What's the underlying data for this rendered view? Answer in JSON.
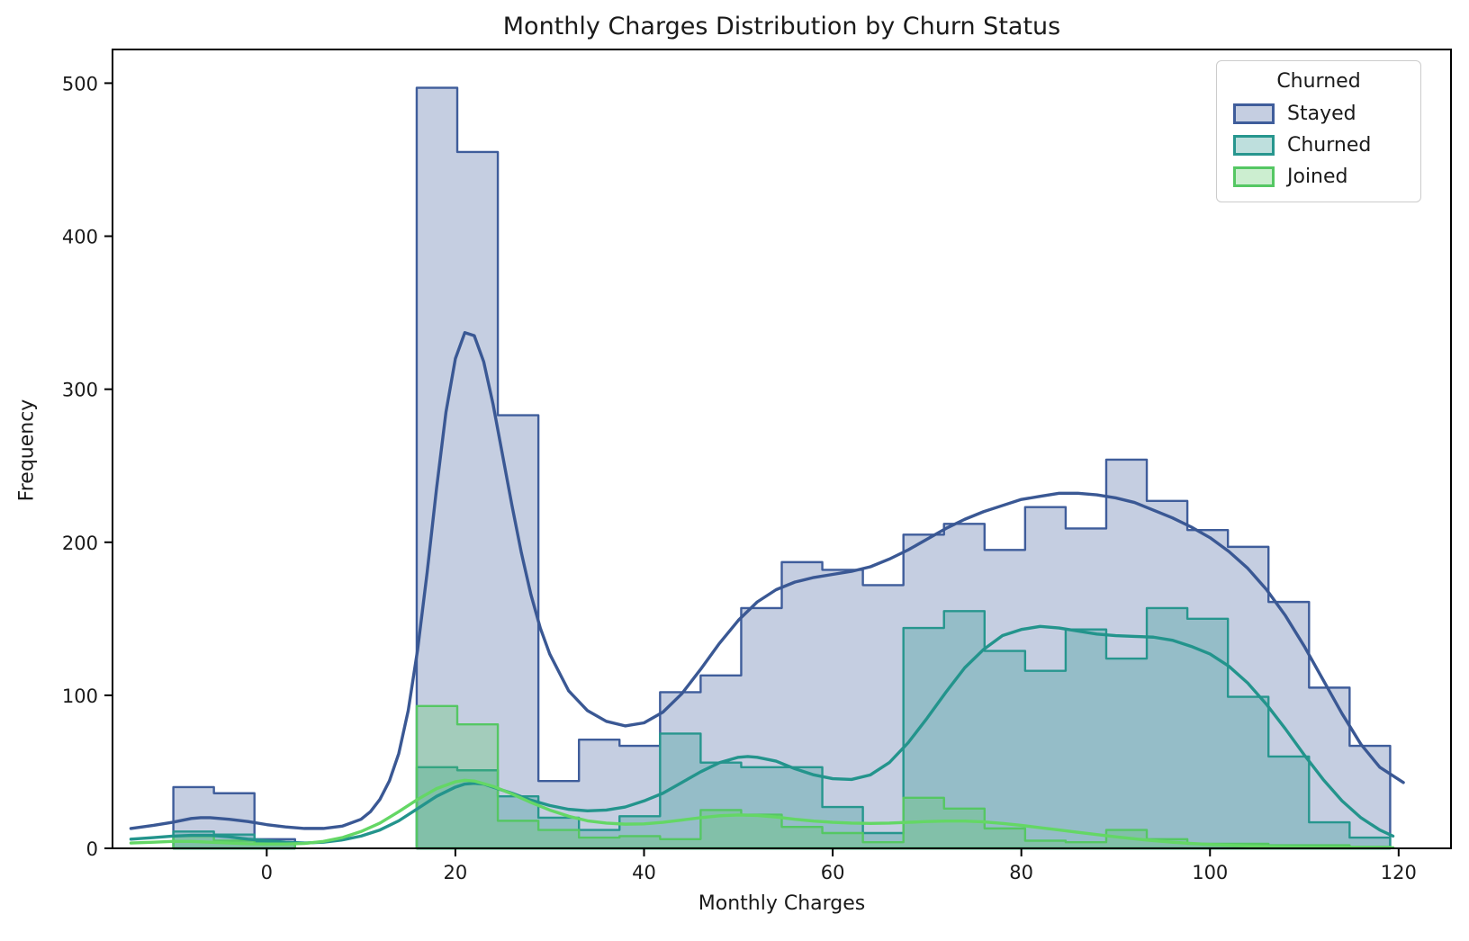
{
  "figure": {
    "title": "Monthly Charges Distribution by Churn Status",
    "xlabel": "Monthly Charges",
    "ylabel": "Frequency"
  },
  "legend": {
    "title": "Churned",
    "entries": [
      {
        "label": "Stayed",
        "color": "#3F5D9B"
      },
      {
        "label": "Churned",
        "color": "#27968E"
      },
      {
        "label": "Joined",
        "color": "#55C763"
      }
    ]
  },
  "chart_data": {
    "type": "histogram+kde",
    "title": "Monthly Charges Distribution by Churn Status",
    "xlabel": "Monthly Charges",
    "ylabel": "Frequency",
    "legend_title": "Churned",
    "legend_position": "upper right",
    "grid": false,
    "xlim": [
      -16.35,
      125.55
    ],
    "ylim": [
      0,
      522
    ],
    "x_ticks": [
      0,
      20,
      40,
      60,
      80,
      100,
      120
    ],
    "y_ticks": [
      0,
      100,
      200,
      300,
      400,
      500
    ],
    "bin_start": -9.9,
    "bin_width": 4.3,
    "n_bins": 30,
    "series": [
      {
        "name": "Stayed",
        "color": "#3F5D9B",
        "heights": [
          40,
          36,
          6,
          0,
          0,
          0,
          497,
          455,
          283,
          44,
          71,
          67,
          102,
          113,
          157,
          187,
          182,
          172,
          205,
          212,
          195,
          223,
          209,
          254,
          227,
          208,
          197,
          161,
          105,
          67
        ]
      },
      {
        "name": "Churned",
        "color": "#27968E",
        "heights": [
          11,
          9,
          4,
          0,
          0,
          0,
          53,
          51,
          34,
          20,
          12,
          21,
          75,
          56,
          53,
          53,
          27,
          10,
          144,
          155,
          129,
          116,
          143,
          124,
          157,
          150,
          99,
          60,
          17,
          7
        ]
      },
      {
        "name": "Joined",
        "color": "#55C763",
        "heights": [
          8,
          5,
          3,
          0,
          0,
          0,
          93,
          81,
          18,
          12,
          7,
          8,
          6,
          25,
          22,
          14,
          10,
          4,
          33,
          26,
          13,
          5,
          4,
          12,
          6,
          3,
          3,
          2,
          2,
          1
        ]
      }
    ],
    "kde": [
      {
        "name": "Stayed",
        "color": "#3A5894",
        "points": [
          [
            -14.4,
            13
          ],
          [
            -12,
            15
          ],
          [
            -10,
            17
          ],
          [
            -8,
            19.5
          ],
          [
            -7,
            20
          ],
          [
            -6,
            20
          ],
          [
            -4,
            19
          ],
          [
            -2,
            17.5
          ],
          [
            0,
            15.5
          ],
          [
            2,
            14
          ],
          [
            4,
            13
          ],
          [
            6,
            13
          ],
          [
            8,
            14.5
          ],
          [
            10,
            19
          ],
          [
            11,
            24
          ],
          [
            12,
            32
          ],
          [
            13,
            44
          ],
          [
            14,
            62
          ],
          [
            15,
            90
          ],
          [
            16,
            130
          ],
          [
            17,
            180
          ],
          [
            18,
            235
          ],
          [
            19,
            285
          ],
          [
            20,
            320
          ],
          [
            21,
            337
          ],
          [
            22,
            335
          ],
          [
            23,
            318
          ],
          [
            24,
            290
          ],
          [
            25,
            257
          ],
          [
            26,
            224
          ],
          [
            27,
            193
          ],
          [
            28,
            166
          ],
          [
            29,
            144
          ],
          [
            30,
            127
          ],
          [
            32,
            103
          ],
          [
            34,
            90
          ],
          [
            36,
            83
          ],
          [
            38,
            80
          ],
          [
            40,
            82
          ],
          [
            42,
            89
          ],
          [
            44,
            101
          ],
          [
            46,
            117
          ],
          [
            48,
            134
          ],
          [
            50,
            149
          ],
          [
            52,
            161
          ],
          [
            54,
            169
          ],
          [
            56,
            174
          ],
          [
            58,
            177
          ],
          [
            60,
            179
          ],
          [
            62,
            181
          ],
          [
            64,
            184
          ],
          [
            66,
            189
          ],
          [
            68,
            195
          ],
          [
            70,
            202
          ],
          [
            72,
            209
          ],
          [
            74,
            215
          ],
          [
            76,
            220
          ],
          [
            78,
            224
          ],
          [
            80,
            228
          ],
          [
            82,
            230
          ],
          [
            84,
            232
          ],
          [
            86,
            232
          ],
          [
            88,
            231
          ],
          [
            90,
            229
          ],
          [
            92,
            226
          ],
          [
            94,
            221
          ],
          [
            96,
            216
          ],
          [
            98,
            210
          ],
          [
            100,
            203
          ],
          [
            102,
            194
          ],
          [
            104,
            183
          ],
          [
            106,
            169
          ],
          [
            108,
            152
          ],
          [
            110,
            132
          ],
          [
            112,
            110
          ],
          [
            114,
            88
          ],
          [
            116,
            68
          ],
          [
            118,
            53
          ],
          [
            120,
            45
          ],
          [
            120.5,
            43
          ]
        ]
      },
      {
        "name": "Churned",
        "color": "#23948C",
        "points": [
          [
            -14.4,
            6
          ],
          [
            -12,
            7
          ],
          [
            -10,
            8
          ],
          [
            -8,
            8.5
          ],
          [
            -6,
            8.5
          ],
          [
            -4,
            7.5
          ],
          [
            -2,
            6
          ],
          [
            0,
            5
          ],
          [
            2,
            4
          ],
          [
            4,
            3.5
          ],
          [
            6,
            4
          ],
          [
            8,
            5.5
          ],
          [
            10,
            8
          ],
          [
            12,
            12
          ],
          [
            14,
            18
          ],
          [
            16,
            26
          ],
          [
            18,
            34
          ],
          [
            20,
            40
          ],
          [
            21,
            42
          ],
          [
            22,
            42.5
          ],
          [
            23,
            42
          ],
          [
            24,
            40
          ],
          [
            26,
            36
          ],
          [
            28,
            31.5
          ],
          [
            30,
            28
          ],
          [
            32,
            25.5
          ],
          [
            34,
            24.5
          ],
          [
            36,
            25
          ],
          [
            38,
            27
          ],
          [
            40,
            31
          ],
          [
            42,
            36
          ],
          [
            44,
            43
          ],
          [
            46,
            50
          ],
          [
            48,
            56
          ],
          [
            50,
            59.5
          ],
          [
            51,
            60
          ],
          [
            52,
            59.5
          ],
          [
            54,
            57
          ],
          [
            56,
            52
          ],
          [
            58,
            48
          ],
          [
            60,
            45.5
          ],
          [
            62,
            45
          ],
          [
            64,
            48
          ],
          [
            66,
            56
          ],
          [
            68,
            69
          ],
          [
            70,
            85
          ],
          [
            72,
            102
          ],
          [
            74,
            118
          ],
          [
            76,
            130
          ],
          [
            78,
            139
          ],
          [
            80,
            143
          ],
          [
            82,
            145
          ],
          [
            84,
            144
          ],
          [
            86,
            142
          ],
          [
            88,
            140
          ],
          [
            90,
            139
          ],
          [
            92,
            138.5
          ],
          [
            94,
            138
          ],
          [
            96,
            136
          ],
          [
            98,
            132
          ],
          [
            100,
            127
          ],
          [
            102,
            119
          ],
          [
            104,
            108
          ],
          [
            106,
            94
          ],
          [
            108,
            78
          ],
          [
            110,
            61
          ],
          [
            112,
            45
          ],
          [
            114,
            31
          ],
          [
            116,
            20
          ],
          [
            118,
            12
          ],
          [
            119.4,
            8
          ]
        ]
      },
      {
        "name": "Joined",
        "color": "#64D765",
        "points": [
          [
            -14.4,
            3.5
          ],
          [
            -12,
            4
          ],
          [
            -10,
            4.5
          ],
          [
            -8,
            4.5
          ],
          [
            -6,
            4
          ],
          [
            -4,
            3.5
          ],
          [
            -2,
            3
          ],
          [
            0,
            2.8
          ],
          [
            2,
            2.8
          ],
          [
            4,
            3.2
          ],
          [
            6,
            4.5
          ],
          [
            8,
            7
          ],
          [
            10,
            11
          ],
          [
            12,
            16.5
          ],
          [
            14,
            24
          ],
          [
            16,
            32
          ],
          [
            18,
            39
          ],
          [
            20,
            43.5
          ],
          [
            21,
            44.5
          ],
          [
            22,
            44
          ],
          [
            24,
            40.5
          ],
          [
            26,
            35.5
          ],
          [
            28,
            30
          ],
          [
            30,
            25
          ],
          [
            32,
            21
          ],
          [
            34,
            18
          ],
          [
            36,
            16.5
          ],
          [
            38,
            15.8
          ],
          [
            40,
            16
          ],
          [
            42,
            17
          ],
          [
            44,
            18.5
          ],
          [
            46,
            20
          ],
          [
            48,
            21.3
          ],
          [
            50,
            21.8
          ],
          [
            52,
            21.5
          ],
          [
            54,
            20.5
          ],
          [
            56,
            19
          ],
          [
            58,
            17.8
          ],
          [
            60,
            17
          ],
          [
            62,
            16.5
          ],
          [
            64,
            16.3
          ],
          [
            66,
            16.5
          ],
          [
            68,
            17
          ],
          [
            70,
            17.5
          ],
          [
            72,
            17.8
          ],
          [
            74,
            17.8
          ],
          [
            76,
            17.3
          ],
          [
            78,
            16.3
          ],
          [
            80,
            15
          ],
          [
            82,
            13.5
          ],
          [
            84,
            12
          ],
          [
            86,
            10.5
          ],
          [
            88,
            9
          ],
          [
            90,
            7.5
          ],
          [
            92,
            6.2
          ],
          [
            94,
            5
          ],
          [
            96,
            4
          ],
          [
            98,
            3.2
          ],
          [
            100,
            2.5
          ],
          [
            102,
            2
          ],
          [
            104,
            1.6
          ],
          [
            106,
            1.3
          ],
          [
            108,
            1
          ],
          [
            110,
            0.8
          ],
          [
            112,
            0.7
          ],
          [
            114,
            0.6
          ],
          [
            116,
            0.5
          ],
          [
            118,
            0.4
          ],
          [
            119.4,
            0.4
          ]
        ]
      }
    ]
  }
}
